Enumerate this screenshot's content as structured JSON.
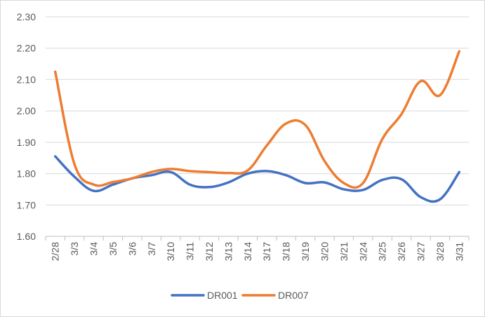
{
  "chart_data": {
    "type": "line",
    "title": "",
    "xlabel": "",
    "ylabel": "",
    "categories": [
      "2/28",
      "3/3",
      "3/4",
      "3/5",
      "3/6",
      "3/7",
      "3/10",
      "3/11",
      "3/12",
      "3/13",
      "3/14",
      "3/17",
      "3/18",
      "3/19",
      "3/20",
      "3/21",
      "3/24",
      "3/25",
      "3/26",
      "3/27",
      "3/28",
      "3/31"
    ],
    "ylim": [
      1.6,
      2.3
    ],
    "yticks": [
      "1.60",
      "1.70",
      "1.80",
      "1.90",
      "2.00",
      "2.10",
      "2.20",
      "2.30"
    ],
    "grid": true,
    "legend_position": "bottom",
    "series": [
      {
        "name": "DR001",
        "color": "#4472C4",
        "values": [
          1.855,
          1.79,
          1.745,
          1.765,
          1.785,
          1.795,
          1.805,
          1.765,
          1.757,
          1.772,
          1.8,
          1.808,
          1.795,
          1.77,
          1.772,
          1.75,
          1.748,
          1.78,
          1.782,
          1.725,
          1.718,
          1.805
        ]
      },
      {
        "name": "DR007",
        "color": "#ED7D31",
        "values": [
          2.125,
          1.83,
          1.765,
          1.773,
          1.785,
          1.805,
          1.815,
          1.808,
          1.805,
          1.802,
          1.81,
          1.89,
          1.96,
          1.955,
          1.84,
          1.77,
          1.77,
          1.91,
          1.99,
          2.095,
          2.05,
          2.19
        ]
      }
    ]
  }
}
